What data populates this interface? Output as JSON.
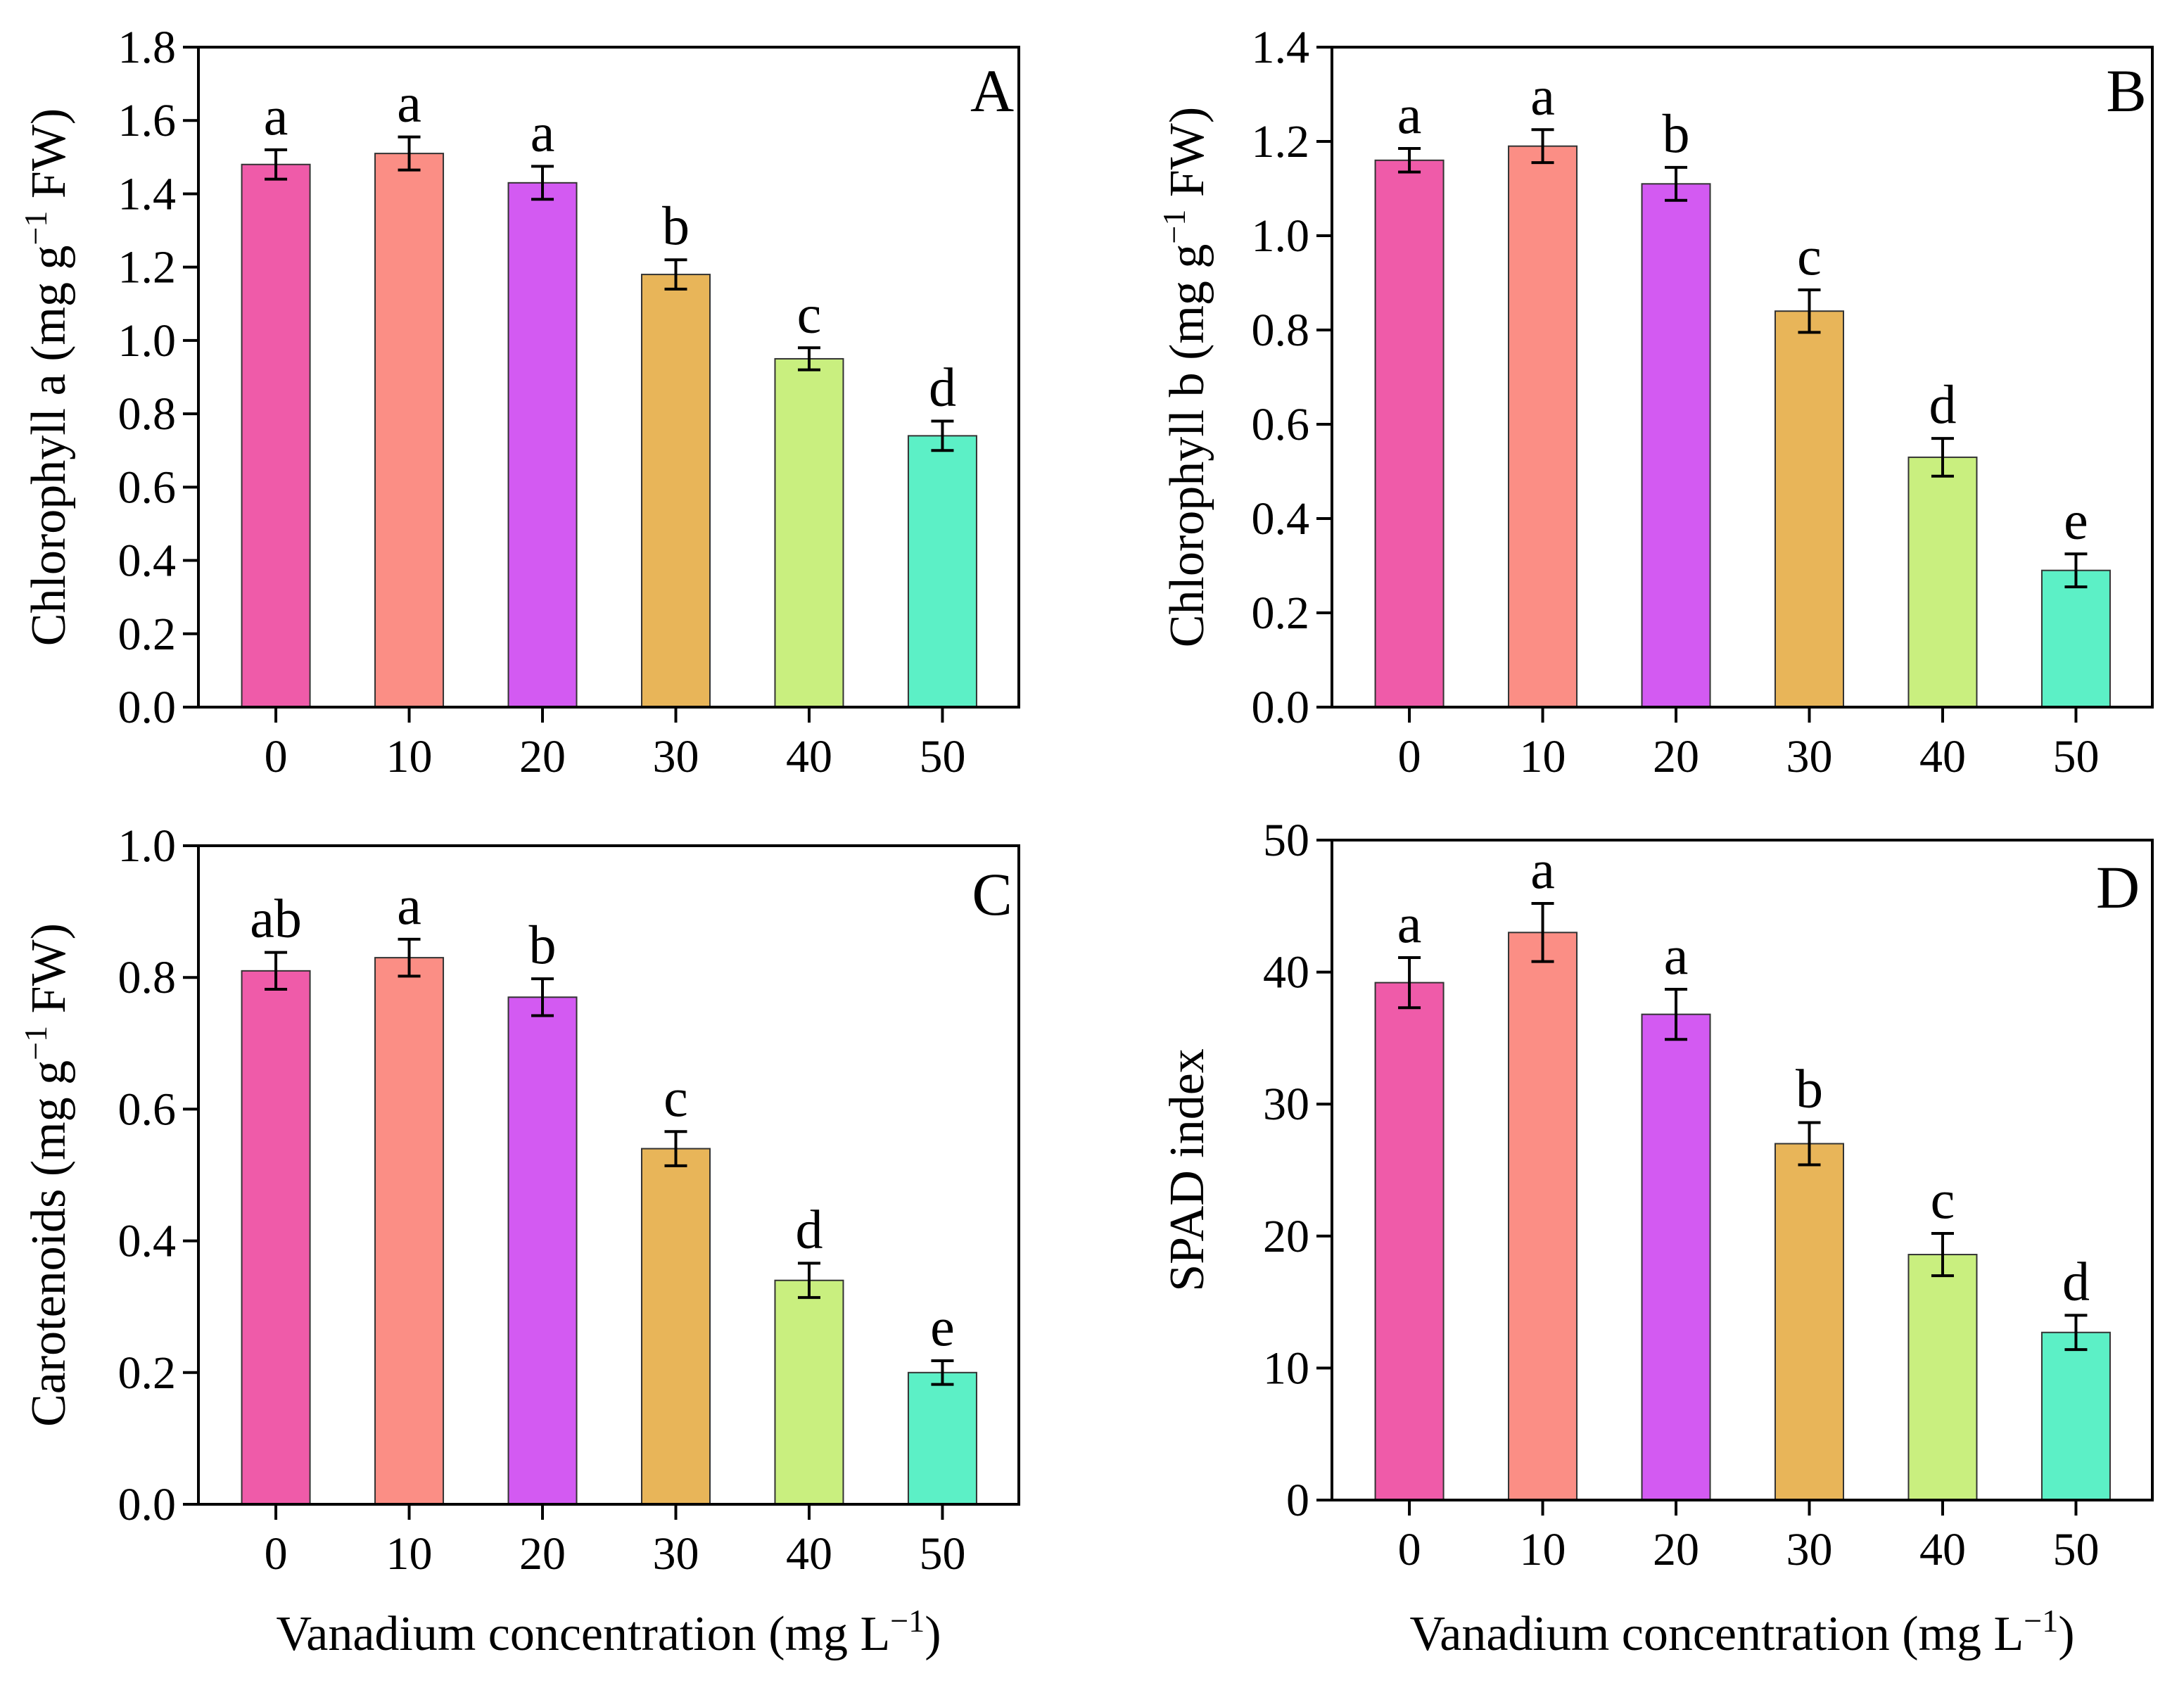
{
  "figure": {
    "shared_xlabel": "Vanadium concentration (mg L",
    "shared_xlabel_sup": "−1",
    "shared_xlabel_tail": ")",
    "colors": [
      "#ef5ba9",
      "#fb8e85",
      "#d35af2",
      "#e8b559",
      "#c9ef7f",
      "#5cf0c6"
    ]
  },
  "chart_data": [
    {
      "type": "bar",
      "panel": "A",
      "categories": [
        "0",
        "10",
        "20",
        "30",
        "40",
        "50"
      ],
      "values": [
        1.48,
        1.51,
        1.43,
        1.18,
        0.95,
        0.74
      ],
      "errors": [
        0.04,
        0.045,
        0.045,
        0.04,
        0.03,
        0.04
      ],
      "significance": [
        "a",
        "a",
        "a",
        "b",
        "c",
        "d"
      ],
      "ylabel_pre": "Chlorophyll a (mg g",
      "ylabel_sup": "−1",
      "ylabel_post": " FW)",
      "xlabel": "",
      "ylim": [
        0,
        1.8
      ],
      "yticks": [
        "0.0",
        "0.2",
        "0.4",
        "0.6",
        "0.8",
        "1.0",
        "1.2",
        "1.4",
        "1.6",
        "1.8"
      ]
    },
    {
      "type": "bar",
      "panel": "B",
      "categories": [
        "0",
        "10",
        "20",
        "30",
        "40",
        "50"
      ],
      "values": [
        1.16,
        1.19,
        1.11,
        0.84,
        0.53,
        0.29
      ],
      "errors": [
        0.025,
        0.035,
        0.035,
        0.045,
        0.04,
        0.035
      ],
      "significance": [
        "a",
        "a",
        "b",
        "c",
        "d",
        "e"
      ],
      "ylabel_pre": "Chlorophyll b (mg g",
      "ylabel_sup": "−1",
      "ylabel_post": " FW)",
      "xlabel": "",
      "ylim": [
        0,
        1.4
      ],
      "yticks": [
        "0.0",
        "0.2",
        "0.4",
        "0.6",
        "0.8",
        "1.0",
        "1.2",
        "1.4"
      ]
    },
    {
      "type": "bar",
      "panel": "C",
      "categories": [
        "0",
        "10",
        "20",
        "30",
        "40",
        "50"
      ],
      "values": [
        0.81,
        0.83,
        0.77,
        0.54,
        0.34,
        0.2
      ],
      "errors": [
        0.028,
        0.028,
        0.028,
        0.026,
        0.026,
        0.018
      ],
      "significance": [
        "ab",
        "a",
        "b",
        "c",
        "d",
        "e"
      ],
      "ylabel_pre": "Carotenoids (mg g",
      "ylabel_sup": "−1",
      "ylabel_post": " FW)",
      "xlabel": "Vanadium concentration (mg L−1)",
      "ylim": [
        0,
        1.0
      ],
      "yticks": [
        "0.0",
        "0.2",
        "0.4",
        "0.6",
        "0.8",
        "1.0"
      ]
    },
    {
      "type": "bar",
      "panel": "D",
      "categories": [
        "0",
        "10",
        "20",
        "30",
        "40",
        "50"
      ],
      "values": [
        39.2,
        43.0,
        36.8,
        27.0,
        18.6,
        12.7
      ],
      "errors": [
        1.9,
        2.2,
        1.9,
        1.6,
        1.6,
        1.3
      ],
      "significance": [
        "a",
        "a",
        "a",
        "b",
        "c",
        "d"
      ],
      "ylabel_pre": "SPAD index",
      "ylabel_sup": "",
      "ylabel_post": "",
      "xlabel": "Vanadium concentration (mg L−1)",
      "ylim": [
        0,
        50
      ],
      "yticks": [
        "0",
        "10",
        "20",
        "30",
        "40",
        "50"
      ]
    }
  ]
}
